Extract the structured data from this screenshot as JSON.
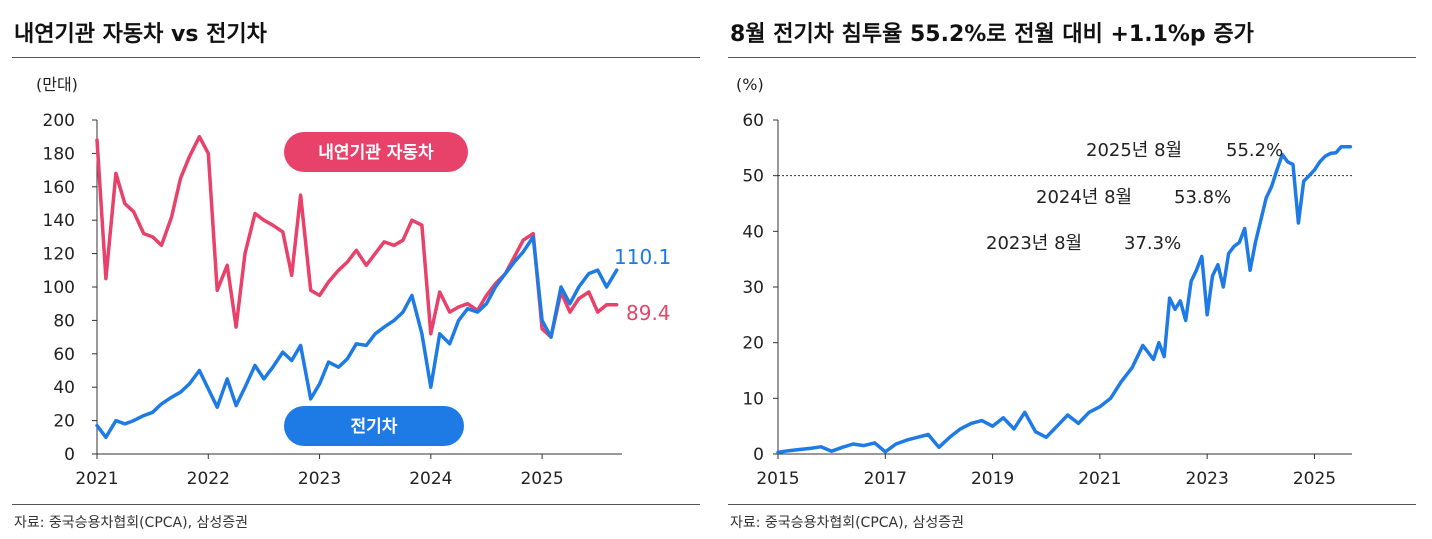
{
  "chart_data": [
    {
      "type": "line",
      "title": "내연기관 자동차 vs 전기차",
      "unit_label": "(만대)",
      "source": "자료: 중국승용차협회(CPCA), 삼성증권",
      "ylim": [
        0,
        200
      ],
      "yticks": [
        0,
        20,
        40,
        60,
        80,
        100,
        120,
        140,
        160,
        180,
        200
      ],
      "xlim": [
        2021,
        2025.7
      ],
      "xticks": [
        2021,
        2022,
        2023,
        2024,
        2025
      ],
      "grid": false,
      "colors": {
        "ice": "#e8416a",
        "ev": "#1e7be6"
      },
      "series": [
        {
          "name": "내연기관 자동차",
          "end_label": "89.4",
          "x": [
            2021.0,
            2021.08,
            2021.17,
            2021.25,
            2021.33,
            2021.42,
            2021.5,
            2021.58,
            2021.67,
            2021.75,
            2021.83,
            2021.92,
            2022.0,
            2022.08,
            2022.17,
            2022.25,
            2022.33,
            2022.42,
            2022.5,
            2022.58,
            2022.67,
            2022.75,
            2022.83,
            2022.92,
            2023.0,
            2023.08,
            2023.17,
            2023.25,
            2023.33,
            2023.42,
            2023.5,
            2023.58,
            2023.67,
            2023.75,
            2023.83,
            2023.92,
            2024.0,
            2024.08,
            2024.17,
            2024.25,
            2024.33,
            2024.42,
            2024.5,
            2024.58,
            2024.67,
            2024.75,
            2024.83,
            2024.92,
            2025.0,
            2025.08,
            2025.17,
            2025.25,
            2025.33,
            2025.42,
            2025.5,
            2025.58,
            2025.67
          ],
          "values": [
            188,
            105,
            168,
            150,
            145,
            132,
            130,
            125,
            142,
            165,
            178,
            190,
            180,
            98,
            113,
            76,
            120,
            144,
            140,
            137,
            133,
            107,
            155,
            98,
            95,
            103,
            110,
            115,
            122,
            113,
            120,
            127,
            125,
            128,
            140,
            137,
            72,
            97,
            85,
            88,
            90,
            86,
            95,
            102,
            108,
            118,
            128,
            132,
            75,
            70,
            97,
            85,
            93,
            97,
            85,
            89.4,
            89.4
          ]
        },
        {
          "name": "전기차",
          "end_label": "110.1",
          "x": [
            2021.0,
            2021.08,
            2021.17,
            2021.25,
            2021.33,
            2021.42,
            2021.5,
            2021.58,
            2021.67,
            2021.75,
            2021.83,
            2021.92,
            2022.0,
            2022.08,
            2022.17,
            2022.25,
            2022.33,
            2022.42,
            2022.5,
            2022.58,
            2022.67,
            2022.75,
            2022.83,
            2022.92,
            2023.0,
            2023.08,
            2023.17,
            2023.25,
            2023.33,
            2023.42,
            2023.5,
            2023.58,
            2023.67,
            2023.75,
            2023.83,
            2023.92,
            2024.0,
            2024.08,
            2024.17,
            2024.25,
            2024.33,
            2024.42,
            2024.5,
            2024.58,
            2024.67,
            2024.75,
            2024.83,
            2024.92,
            2025.0,
            2025.08,
            2025.17,
            2025.25,
            2025.33,
            2025.42,
            2025.5,
            2025.58,
            2025.67
          ],
          "values": [
            17,
            10,
            20,
            18,
            20,
            23,
            25,
            30,
            34,
            37,
            42,
            50,
            39,
            28,
            45,
            29,
            40,
            53,
            45,
            52,
            61,
            56,
            65,
            33,
            42,
            55,
            52,
            57,
            66,
            65,
            72,
            76,
            80,
            85,
            95,
            72,
            40,
            72,
            66,
            80,
            87,
            85,
            90,
            100,
            108,
            115,
            121,
            130,
            80,
            70,
            100,
            90,
            100,
            108,
            110.1,
            100,
            110.1
          ]
        }
      ],
      "pill_labels": {
        "ice": "내연기관 자동차",
        "ev": "전기차"
      }
    },
    {
      "type": "line",
      "title": "8월 전기차 침투율 55.2%로 전월 대비 +1.1%p 증가",
      "unit_label": "(%)",
      "source": "자료: 중국승용차협회(CPCA), 삼성증권",
      "ylim": [
        0,
        60
      ],
      "yticks": [
        0,
        10,
        20,
        30,
        40,
        50,
        60
      ],
      "xlim": [
        2015,
        2025.7
      ],
      "xticks": [
        2015,
        2017,
        2019,
        2021,
        2023,
        2025
      ],
      "reference_line": 50,
      "color": "#1e7be6",
      "series": [
        {
          "name": "전기차 침투율",
          "x": [
            2015.0,
            2015.2,
            2015.4,
            2015.6,
            2015.8,
            2016.0,
            2016.2,
            2016.4,
            2016.6,
            2016.8,
            2017.0,
            2017.2,
            2017.4,
            2017.6,
            2017.8,
            2018.0,
            2018.2,
            2018.4,
            2018.6,
            2018.8,
            2019.0,
            2019.2,
            2019.4,
            2019.6,
            2019.8,
            2020.0,
            2020.2,
            2020.4,
            2020.6,
            2020.8,
            2021.0,
            2021.2,
            2021.4,
            2021.6,
            2021.8,
            2022.0,
            2022.1,
            2022.2,
            2022.3,
            2022.4,
            2022.5,
            2022.6,
            2022.7,
            2022.8,
            2022.9,
            2023.0,
            2023.1,
            2023.2,
            2023.3,
            2023.4,
            2023.5,
            2023.6,
            2023.7,
            2023.8,
            2023.9,
            2024.0,
            2024.1,
            2024.2,
            2024.3,
            2024.4,
            2024.5,
            2024.6,
            2024.7,
            2024.8,
            2024.9,
            2025.0,
            2025.1,
            2025.2,
            2025.3,
            2025.4,
            2025.5,
            2025.6,
            2025.67
          ],
          "values": [
            0.3,
            0.6,
            0.8,
            1.0,
            1.3,
            0.5,
            1.2,
            1.8,
            1.5,
            2.0,
            0.4,
            1.8,
            2.5,
            3.0,
            3.5,
            1.2,
            3.0,
            4.5,
            5.5,
            6.0,
            5.0,
            6.5,
            4.5,
            7.5,
            4.0,
            3.0,
            5.0,
            7.0,
            5.5,
            7.5,
            8.5,
            10.0,
            13.0,
            15.5,
            19.5,
            17.0,
            20.0,
            17.5,
            28.0,
            26.0,
            27.5,
            24.0,
            31.0,
            33.0,
            35.5,
            25.0,
            32.0,
            34.0,
            30.0,
            36.0,
            37.3,
            38.0,
            40.5,
            33.0,
            38.0,
            42.0,
            46.0,
            48.0,
            51.0,
            53.8,
            52.5,
            52.0,
            41.5,
            49.0,
            50.0,
            51.0,
            52.5,
            53.5,
            54.0,
            54.1,
            55.2,
            55.2,
            55.2
          ]
        }
      ],
      "annotations": [
        {
          "label": "2025년 8월",
          "value": "55.2%"
        },
        {
          "label": "2024년 8월",
          "value": "53.8%"
        },
        {
          "label": "2023년 8월",
          "value": "37.3%"
        }
      ]
    }
  ]
}
